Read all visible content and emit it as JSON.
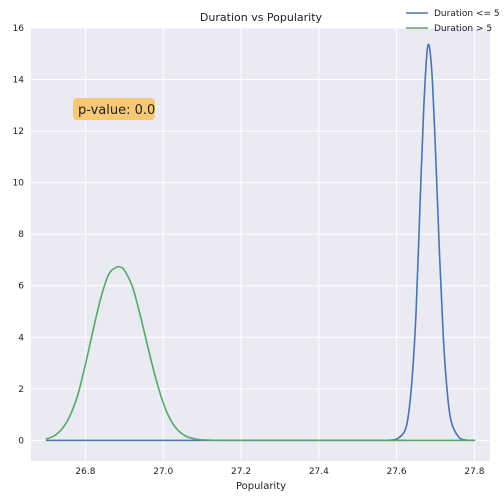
{
  "chart_data": {
    "type": "line",
    "title": "Duration vs Popularity",
    "xlabel": "Popularity",
    "ylabel": "",
    "xlim": [
      26.66,
      27.84
    ],
    "ylim": [
      -0.8,
      16
    ],
    "xticks": [
      26.8,
      27.0,
      27.2,
      27.4,
      27.6,
      27.8
    ],
    "xtick_labels": [
      "26.8",
      "27.0",
      "27.2",
      "27.4",
      "27.6",
      "27.8"
    ],
    "yticks": [
      0,
      2,
      4,
      6,
      8,
      10,
      12,
      14,
      16
    ],
    "ytick_labels": [
      "0",
      "2",
      "4",
      "6",
      "8",
      "10",
      "12",
      "14",
      "16"
    ],
    "grid": true,
    "legend_position": "top-right",
    "annotation": "p-value: 0.0",
    "series": [
      {
        "name": "Duration <= 5",
        "color": "#4c72b0",
        "x": [
          26.7,
          27.55,
          27.58,
          27.6,
          27.62,
          27.63,
          27.64,
          27.65,
          27.66,
          27.67,
          27.68,
          27.69,
          27.7,
          27.71,
          27.72,
          27.73,
          27.74,
          27.76,
          27.78,
          27.8
        ],
        "y": [
          0.0,
          0.0,
          0.01,
          0.05,
          0.34,
          0.96,
          2.44,
          5.0,
          9.1,
          13.0,
          15.3,
          14.4,
          11.2,
          7.3,
          4.0,
          1.9,
          0.75,
          0.12,
          0.01,
          0.0
        ]
      },
      {
        "name": "Duration > 5",
        "color": "#55a868",
        "x": [
          26.7,
          26.72,
          26.74,
          26.76,
          26.78,
          26.8,
          26.82,
          26.84,
          26.86,
          26.88,
          26.89,
          26.9,
          26.92,
          26.94,
          26.96,
          26.98,
          27.0,
          27.02,
          27.04,
          27.06,
          27.08,
          27.1,
          27.15,
          27.2,
          27.4,
          27.6,
          27.8
        ],
        "y": [
          0.06,
          0.18,
          0.45,
          0.95,
          1.75,
          2.95,
          4.3,
          5.55,
          6.45,
          6.72,
          6.72,
          6.6,
          6.0,
          4.9,
          3.65,
          2.45,
          1.45,
          0.76,
          0.36,
          0.15,
          0.06,
          0.02,
          0.0,
          0.0,
          0.0,
          0.0,
          0.0
        ]
      }
    ]
  }
}
